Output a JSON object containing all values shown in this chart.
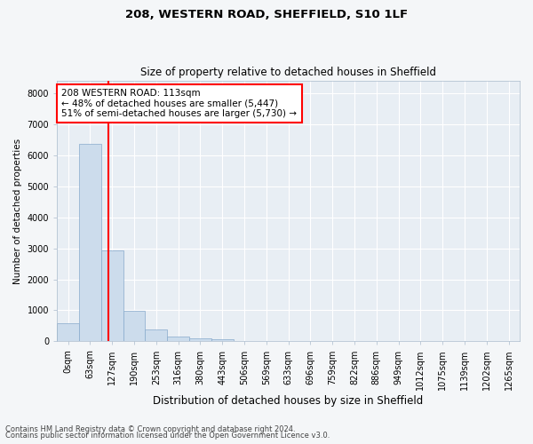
{
  "title_line1": "208, WESTERN ROAD, SHEFFIELD, S10 1LF",
  "title_line2": "Size of property relative to detached houses in Sheffield",
  "xlabel": "Distribution of detached houses by size in Sheffield",
  "ylabel": "Number of detached properties",
  "bar_color": "#ccdcec",
  "bar_edge_color": "#88aacc",
  "bar_categories": [
    "0sqm",
    "63sqm",
    "127sqm",
    "190sqm",
    "253sqm",
    "316sqm",
    "380sqm",
    "443sqm",
    "506sqm",
    "569sqm",
    "633sqm",
    "696sqm",
    "759sqm",
    "822sqm",
    "886sqm",
    "949sqm",
    "1012sqm",
    "1075sqm",
    "1139sqm",
    "1202sqm",
    "1265sqm"
  ],
  "bar_values": [
    580,
    6380,
    2920,
    980,
    370,
    165,
    100,
    65,
    0,
    0,
    0,
    0,
    0,
    0,
    0,
    0,
    0,
    0,
    0,
    0,
    0
  ],
  "property_line_x": 1.85,
  "annotation_text1": "208 WESTERN ROAD: 113sqm",
  "annotation_text2": "← 48% of detached houses are smaller (5,447)",
  "annotation_text3": "51% of semi-detached houses are larger (5,730) →",
  "ylim": [
    0,
    8400
  ],
  "yticks": [
    0,
    1000,
    2000,
    3000,
    4000,
    5000,
    6000,
    7000,
    8000
  ],
  "footer_line1": "Contains HM Land Registry data © Crown copyright and database right 2024.",
  "footer_line2": "Contains public sector information licensed under the Open Government Licence v3.0.",
  "background_color": "#f4f6f8",
  "plot_background_color": "#e8eef4",
  "grid_color": "#ffffff",
  "title1_fontsize": 9.5,
  "title2_fontsize": 8.5,
  "xlabel_fontsize": 8.5,
  "ylabel_fontsize": 7.5,
  "tick_fontsize": 7,
  "footer_fontsize": 6,
  "annot_fontsize": 7.5
}
